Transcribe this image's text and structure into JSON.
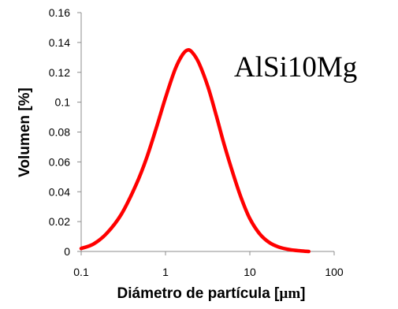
{
  "chart_data": {
    "type": "line",
    "annotation": "AlSi10Mg",
    "xlabel": "Diámetro de partícula [",
    "xlabel_unit": "µm",
    "xlabel_close": "]",
    "ylabel": "Volumen [%]",
    "x_scale": "log",
    "xlim": [
      0.1,
      100
    ],
    "ylim": [
      0,
      0.16
    ],
    "x_ticks": [
      "0.1",
      "1",
      "10",
      "100"
    ],
    "x_tick_values": [
      0.1,
      1,
      10,
      100
    ],
    "y_ticks": [
      "0",
      "0.02",
      "0.04",
      "0.06",
      "0.08",
      "0.1",
      "0.12",
      "0.14",
      "0.16"
    ],
    "y_tick_values": [
      0,
      0.02,
      0.04,
      0.06,
      0.08,
      0.1,
      0.12,
      0.14,
      0.16
    ],
    "grid": false,
    "legend": "none",
    "series": [
      {
        "color": "#ff0000",
        "x": [
          0.1,
          0.14,
          0.2,
          0.3,
          0.45,
          0.6,
          0.8,
          1.0,
          1.3,
          1.6,
          1.85,
          2.1,
          2.5,
          3.2,
          4.0,
          5.0,
          6.5,
          8.0,
          10.0,
          13.0,
          17.0,
          22.0,
          30.0,
          40.0,
          50.0
        ],
        "y": [
          0.002,
          0.005,
          0.012,
          0.025,
          0.045,
          0.063,
          0.085,
          0.103,
          0.122,
          0.132,
          0.135,
          0.133,
          0.126,
          0.11,
          0.091,
          0.071,
          0.05,
          0.035,
          0.022,
          0.012,
          0.006,
          0.003,
          0.0012,
          0.0004,
          0.0
        ]
      }
    ]
  }
}
